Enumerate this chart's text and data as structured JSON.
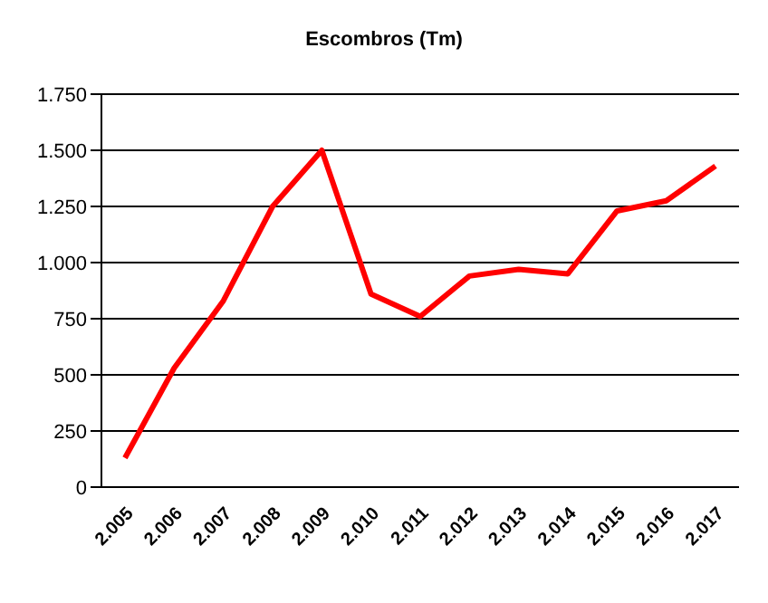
{
  "chart_data": {
    "type": "line",
    "title": "Escombros (Tm)",
    "categories": [
      "2.005",
      "2.006",
      "2.007",
      "2.008",
      "2.009",
      "2.010",
      "2.011",
      "2.012",
      "2.013",
      "2.014",
      "2.015",
      "2.016",
      "2.017"
    ],
    "series": [
      {
        "color": "#ff0000",
        "values": [
          130,
          530,
          830,
          1250,
          1500,
          860,
          760,
          940,
          970,
          950,
          1230,
          1275,
          1430
        ]
      }
    ],
    "ylim": [
      0,
      1750
    ],
    "yticks": [
      0,
      250,
      500,
      750,
      {
        "value": 1000,
        "label": "1.000"
      },
      {
        "value": 1250,
        "label": "1.250"
      },
      {
        "value": 1500,
        "label": "1.500"
      },
      {
        "value": 1750,
        "label": "1.750"
      }
    ],
    "grid": "y",
    "marker": "none",
    "line_style": "solid"
  }
}
